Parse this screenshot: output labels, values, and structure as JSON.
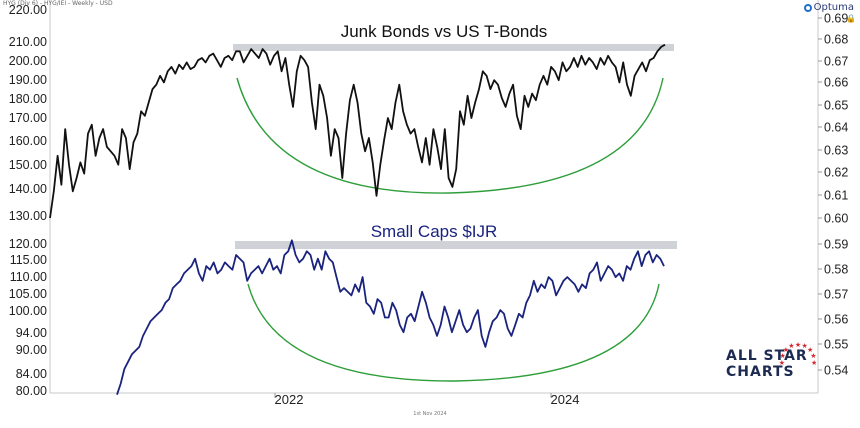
{
  "header": {
    "text": "HYG (Div 6) - HYG/IEI - Weekly - USD"
  },
  "brand": {
    "name": "Optuma"
  },
  "footer": {
    "date": "1st Nov 2024"
  },
  "watermark": {
    "line1": "ALL STAR",
    "line2": "CHARTS"
  },
  "colors": {
    "junk_line": "#111111",
    "smallcap_line": "#1a237e",
    "resistance_bar": "#cfd2d6",
    "arc": "#2e9e3a",
    "title_junk": "#111111",
    "title_smallcap": "#1a237e",
    "star": "#d42a34"
  },
  "chart_data": [
    {
      "type": "line",
      "title": "Junk Bonds vs US T-Bonds",
      "xaxis_ticks": [
        "2022",
        "2024"
      ],
      "yaxis_left_ticks": [
        "220.00",
        "210.00",
        "200.00",
        "190.00",
        "180.00",
        "170.00",
        "160.00",
        "150.00",
        "140.00",
        "130.00"
      ],
      "yaxis_right_ticks": [
        "0.69",
        "0.68",
        "0.67",
        "0.66",
        "0.65",
        "0.64",
        "0.63",
        "0.62",
        "0.61",
        "0.60"
      ],
      "ylim_right": [
        0.596,
        0.692
      ],
      "series": [
        {
          "values": [
            0.6,
            0.612,
            0.628,
            0.615,
            0.64,
            0.624,
            0.612,
            0.618,
            0.625,
            0.62,
            0.638,
            0.642,
            0.628,
            0.636,
            0.64,
            0.632,
            0.63,
            0.628,
            0.624,
            0.64,
            0.636,
            0.622,
            0.634,
            0.638,
            0.648,
            0.646,
            0.652,
            0.658,
            0.66,
            0.664,
            0.661,
            0.666,
            0.668,
            0.665,
            0.669,
            0.667,
            0.67,
            0.667,
            0.668,
            0.671,
            0.672,
            0.67,
            0.673,
            0.674,
            0.671,
            0.668,
            0.672,
            0.673,
            0.671,
            0.675,
            0.675,
            0.67,
            0.673,
            0.676,
            0.674,
            0.672,
            0.676,
            0.674,
            0.669,
            0.673,
            0.675,
            0.666,
            0.672,
            0.66,
            0.65,
            0.666,
            0.673,
            0.671,
            0.668,
            0.652,
            0.64,
            0.66,
            0.655,
            0.645,
            0.628,
            0.64,
            0.636,
            0.618,
            0.638,
            0.653,
            0.66,
            0.652,
            0.638,
            0.63,
            0.636,
            0.625,
            0.61,
            0.624,
            0.635,
            0.645,
            0.64,
            0.652,
            0.66,
            0.648,
            0.642,
            0.638,
            0.64,
            0.632,
            0.625,
            0.636,
            0.624,
            0.64,
            0.632,
            0.622,
            0.64,
            0.618,
            0.614,
            0.622,
            0.648,
            0.642,
            0.655,
            0.645,
            0.652,
            0.658,
            0.666,
            0.664,
            0.658,
            0.662,
            0.66,
            0.654,
            0.65,
            0.656,
            0.66,
            0.646,
            0.64,
            0.655,
            0.65,
            0.656,
            0.653,
            0.66,
            0.664,
            0.66,
            0.668,
            0.666,
            0.662,
            0.67,
            0.666,
            0.668,
            0.672,
            0.668,
            0.673,
            0.669,
            0.672,
            0.67,
            0.667,
            0.672,
            0.669,
            0.673,
            0.67,
            0.668,
            0.661,
            0.67,
            0.66,
            0.655,
            0.664,
            0.667,
            0.67,
            0.666,
            0.671,
            0.672,
            0.675,
            0.677,
            0.678
          ]
        }
      ]
    },
    {
      "type": "line",
      "title": "Small Caps $IJR",
      "yaxis_left_ticks": [
        "120.00",
        "115.00",
        "110.00",
        "105.00",
        "100.00",
        "94.00",
        "90.00",
        "84.00",
        "80.00"
      ],
      "yaxis_right_ticks": [
        "0.59",
        "0.58",
        "0.57",
        "0.56",
        "0.55",
        "0.54"
      ],
      "ylim_left": [
        79,
        121
      ],
      "series": [
        {
          "values": [
            79,
            82,
            86,
            88,
            90,
            91,
            92,
            95,
            97,
            99,
            100,
            101,
            102,
            104,
            105,
            108,
            109,
            110,
            112,
            113,
            114,
            116,
            112,
            110,
            114,
            113,
            115,
            112,
            113,
            115,
            114,
            113,
            117,
            116,
            115,
            110,
            112,
            113,
            114,
            112,
            114,
            116,
            113,
            114,
            112,
            117,
            118,
            121,
            117,
            115,
            116,
            118,
            117,
            113,
            116,
            113,
            118,
            116,
            115,
            111,
            107,
            108,
            107,
            106,
            109,
            107,
            111,
            104,
            103,
            101,
            105,
            104,
            100,
            100,
            104,
            102,
            98,
            96,
            100,
            101,
            99,
            103,
            107,
            104,
            100,
            98,
            95,
            98,
            103,
            100,
            96,
            99,
            102,
            98,
            96,
            97,
            100,
            102,
            95,
            92,
            96,
            99,
            100,
            102,
            101,
            97,
            95,
            98,
            101,
            100,
            104,
            106,
            110,
            107,
            109,
            108,
            111,
            110,
            106,
            108,
            110,
            111,
            110,
            109,
            107,
            109,
            108,
            112,
            113,
            115,
            110,
            112,
            114,
            113,
            111,
            112,
            110,
            114,
            113,
            116,
            118,
            114,
            117,
            118,
            115,
            117,
            116,
            114
          ]
        }
      ]
    }
  ]
}
